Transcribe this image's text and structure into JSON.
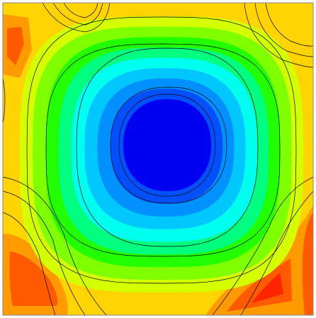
{
  "chart_data": {
    "type": "contour",
    "colors": [
      "#ffd400",
      "#d4ff00",
      "#80ff00",
      "#22ff00",
      "#00ff80",
      "#00ffee",
      "#00c8ff",
      "#0090ff",
      "#0050ff",
      "#0000f0"
    ],
    "hot_colors": [
      "#ff9a00",
      "#ff5a00",
      "#ff2400"
    ],
    "line_color": "#000000"
  }
}
